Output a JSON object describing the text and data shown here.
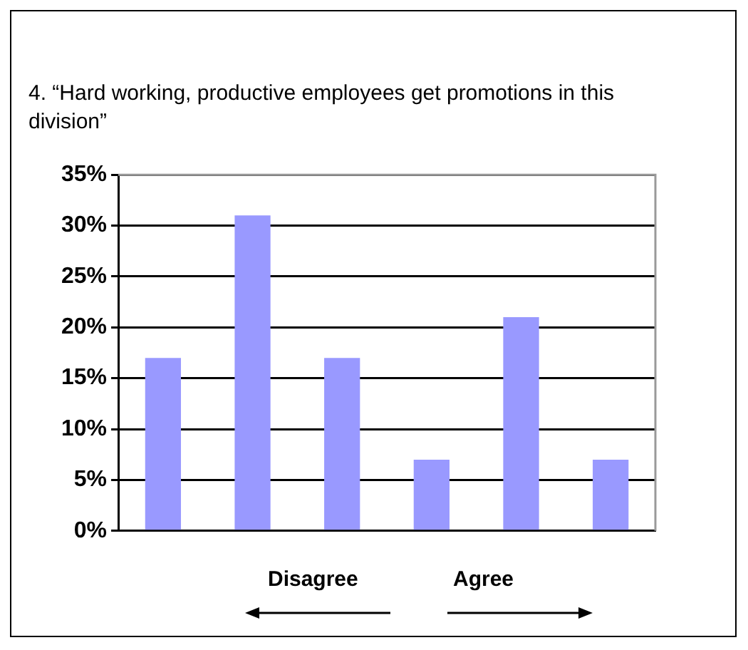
{
  "chart_data": {
    "type": "bar",
    "title": "4. “Hard working, productive employees get promotions in this division”",
    "categories": [
      null,
      null,
      null,
      null,
      null,
      null
    ],
    "values": [
      17,
      31,
      17,
      7,
      21,
      7
    ],
    "color": "#9999ff",
    "ylim": [
      0,
      35
    ],
    "yticks": [
      {
        "value": 0,
        "label": "0%"
      },
      {
        "value": 5,
        "label": "5%"
      },
      {
        "value": 10,
        "label": "10%"
      },
      {
        "value": 15,
        "label": "15%"
      },
      {
        "value": 20,
        "label": "20%"
      },
      {
        "value": 25,
        "label": "25%"
      },
      {
        "value": 30,
        "label": "30%"
      },
      {
        "value": 35,
        "label": "35%"
      }
    ],
    "grid": "y",
    "legend": false,
    "annotations": [
      "Disagree",
      "Agree"
    ]
  }
}
